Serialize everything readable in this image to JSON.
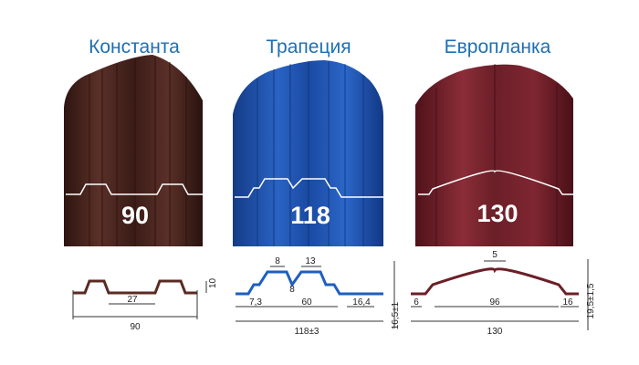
{
  "products": [
    {
      "title": "Константа",
      "width_label": "90",
      "panel_color": "#4a2620",
      "dims": {
        "d1": "27",
        "d2": "90",
        "d3": "10"
      }
    },
    {
      "title": "Трапеция",
      "width_label": "118",
      "panel_color": "#1d4fa0",
      "dims": {
        "d1": "8",
        "d2": "13",
        "d3": "8",
        "d4": "7,3",
        "d5": "60",
        "d6": "16,4",
        "d7": "118±3",
        "d8": "16,5±1"
      }
    },
    {
      "title": "Европланка",
      "width_label": "130",
      "panel_color": "#6b1f28",
      "dims": {
        "d1": "5",
        "d2": "6",
        "d3": "96",
        "d4": "16",
        "d5": "130",
        "d6": "19,5±1,5"
      }
    }
  ]
}
